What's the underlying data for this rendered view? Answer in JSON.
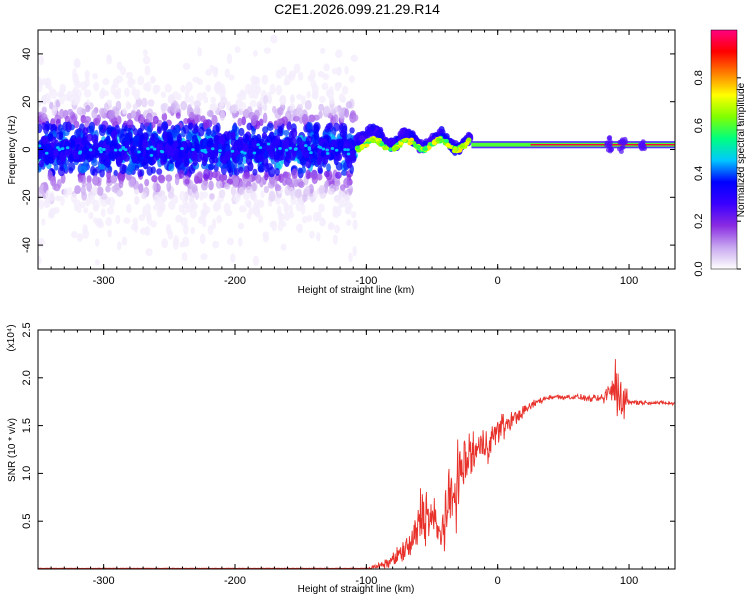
{
  "title": "C2E1.2026.099.21.29.R14",
  "chart_data": [
    {
      "type": "heatmap",
      "title": "C2E1.2026.099.21.29.R14",
      "xlabel": "Height of straight line (km)",
      "ylabel": "Frequency (Hz)",
      "xlim": [
        -350,
        135
      ],
      "ylim": [
        -50,
        50
      ],
      "xticks": [
        -300,
        -200,
        -100,
        0,
        100
      ],
      "xtick_labels": [
        "-300",
        "-200",
        "-100",
        "0",
        "100"
      ],
      "yticks": [
        -40,
        -20,
        0,
        20,
        40
      ],
      "ytick_labels": [
        "-40",
        "-20",
        "0",
        "20",
        "40"
      ],
      "colorbar": {
        "label": "Normalized spectral amplitude",
        "range": [
          0,
          1
        ],
        "ticks": [
          0.0,
          0.2,
          0.4,
          0.6,
          0.8
        ],
        "tick_labels": [
          "0.0",
          "0.2",
          "0.4",
          "0.6",
          "0.8"
        ],
        "colormap": [
          "#ffffff",
          "#c8a8f0",
          "#8a2be2",
          "#3a00ff",
          "#0000ff",
          "#00c8ff",
          "#00ff80",
          "#80ff00",
          "#ffff00",
          "#ff8000",
          "#ff0000",
          "#ff0080"
        ]
      },
      "regions": [
        {
          "x_range": [
            -350,
            -108
          ],
          "description": "broadband scatter",
          "center_freq": 0,
          "spread": 50
        },
        {
          "x_range": [
            -108,
            -20
          ],
          "description": "wavy signal",
          "center_freq": 2,
          "spread": 6
        },
        {
          "x_range": [
            -20,
            135
          ],
          "description": "steady tone",
          "center_freq": 2,
          "spread": 1.5
        }
      ]
    },
    {
      "type": "line",
      "xlabel": "Height of straight line (km)",
      "ylabel": "SNR (10 * v/v)",
      "scale_label": "(x10⁴)",
      "xlim": [
        -350,
        135
      ],
      "ylim": [
        0,
        2.5
      ],
      "xticks": [
        -300,
        -200,
        -100,
        0,
        100
      ],
      "xtick_labels": [
        "-300",
        "-200",
        "-100",
        "0",
        "100"
      ],
      "yticks": [
        0.5,
        1.0,
        1.5,
        2.0,
        2.5
      ],
      "ytick_labels": [
        "0.5",
        "1.0",
        "1.5",
        "2.0",
        "2.5"
      ],
      "series": [
        {
          "name": "SNR",
          "color": "#e8312a",
          "x": [
            -350,
            -120,
            -100,
            -85,
            -75,
            -65,
            -58,
            -52,
            -48,
            -45,
            -40,
            -35,
            -30,
            -25,
            -20,
            -15,
            -10,
            -5,
            0,
            5,
            10,
            15,
            20,
            30,
            40,
            50,
            60,
            70,
            80,
            85,
            90,
            95,
            100,
            110,
            120,
            135
          ],
          "y": [
            0.0,
            0.0,
            0.0,
            0.05,
            0.15,
            0.25,
            0.6,
            0.55,
            0.5,
            0.35,
            0.5,
            0.75,
            0.95,
            1.1,
            1.2,
            1.25,
            1.3,
            1.35,
            1.45,
            1.5,
            1.55,
            1.6,
            1.65,
            1.75,
            1.8,
            1.8,
            1.8,
            1.78,
            1.78,
            1.85,
            1.9,
            1.8,
            1.75,
            1.74,
            1.74,
            1.73
          ],
          "noise": [
            0,
            0,
            0.01,
            0.05,
            0.1,
            0.2,
            0.35,
            0.3,
            0.25,
            0.2,
            0.3,
            0.4,
            0.4,
            0.35,
            0.3,
            0.25,
            0.2,
            0.2,
            0.15,
            0.15,
            0.1,
            0.08,
            0.06,
            0.04,
            0.03,
            0.03,
            0.03,
            0.03,
            0.05,
            0.15,
            0.4,
            0.25,
            0.05,
            0.02,
            0.02,
            0.02
          ]
        }
      ]
    }
  ]
}
